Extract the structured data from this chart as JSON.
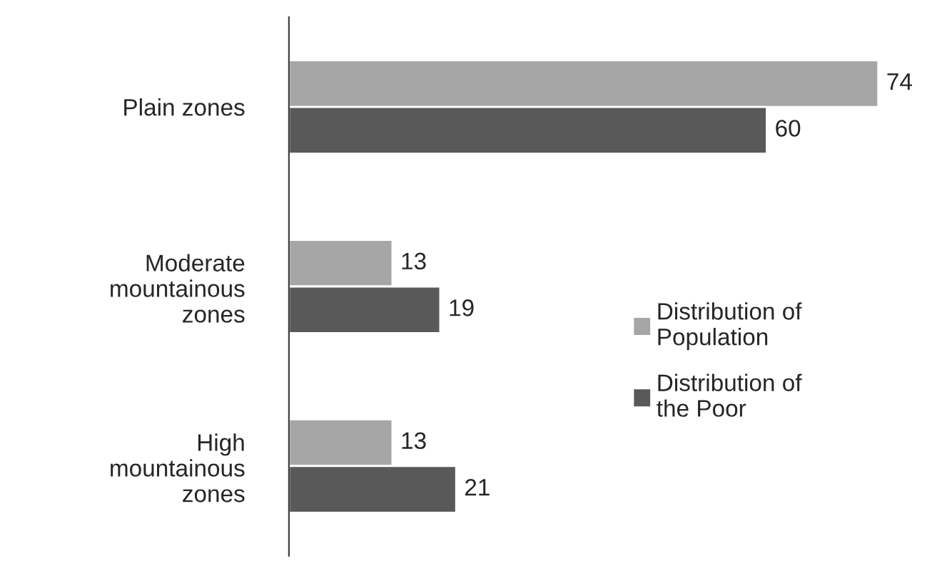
{
  "chart_data": {
    "type": "bar",
    "orientation": "horizontal",
    "categories": [
      "Plain zones",
      "Moderate\nmountainous\nzones",
      "High\nmountainous\nzones"
    ],
    "series": [
      {
        "name": "Distribution of\nPopulation",
        "color": "#a6a6a6",
        "values": [
          74,
          13,
          13
        ]
      },
      {
        "name": "Distribution of\nthe Poor",
        "color": "#595959",
        "values": [
          60,
          19,
          21
        ]
      }
    ],
    "data_labels": true,
    "tick_labels": "y",
    "grid": false,
    "legend": "right"
  }
}
